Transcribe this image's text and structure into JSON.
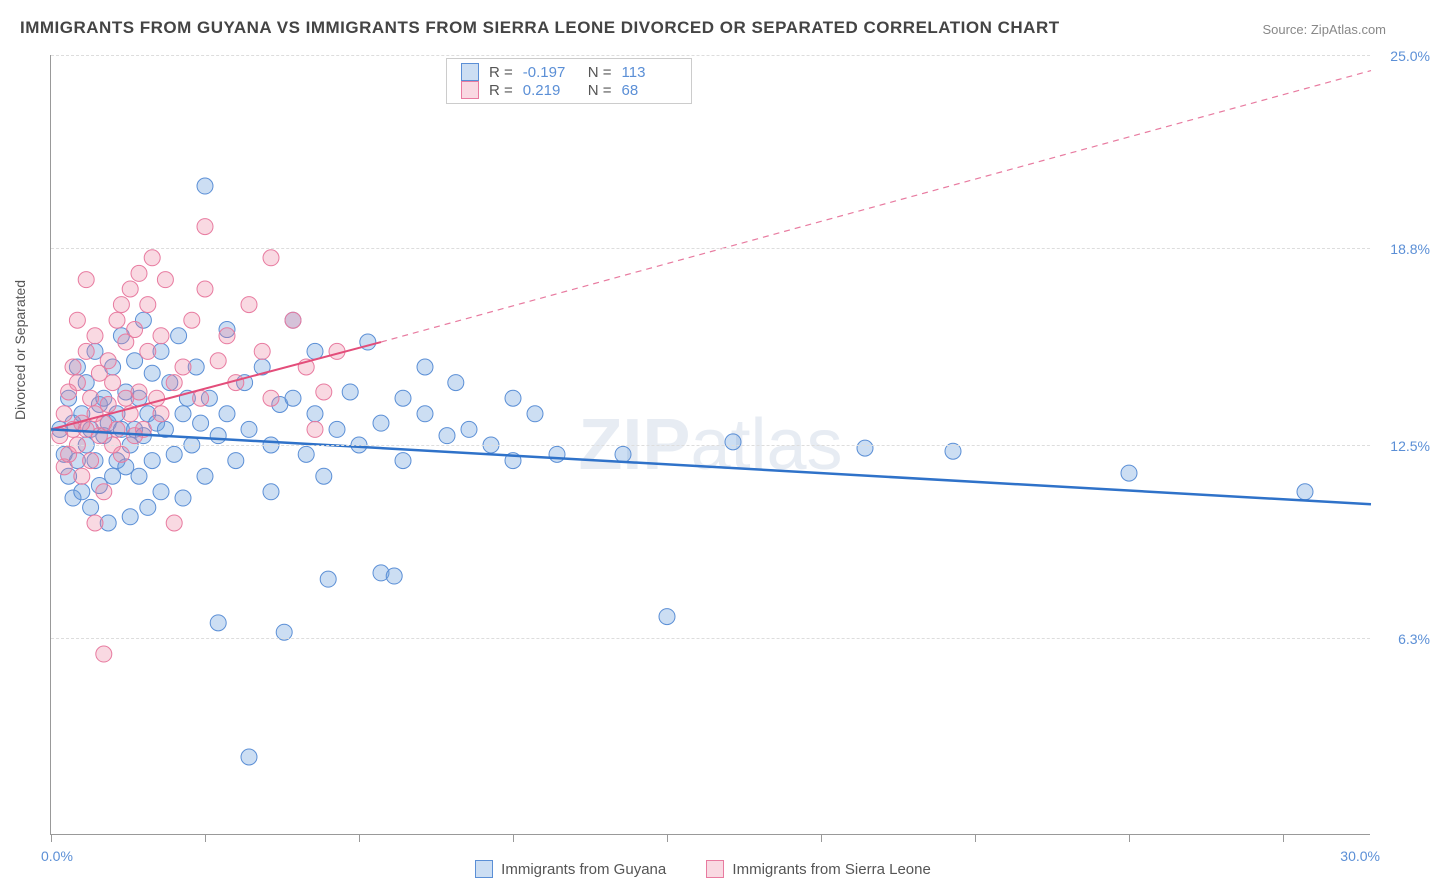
{
  "title": "IMMIGRANTS FROM GUYANA VS IMMIGRANTS FROM SIERRA LEONE DIVORCED OR SEPARATED CORRELATION CHART",
  "source": "Source: ZipAtlas.com",
  "watermark_bold": "ZIP",
  "watermark_rest": "atlas",
  "ylabel": "Divorced or Separated",
  "chart": {
    "type": "scatter",
    "xlim": [
      0,
      30
    ],
    "ylim": [
      0,
      25
    ],
    "xtick_positions": [
      0,
      3.5,
      7.0,
      10.5,
      14.0,
      17.5,
      21.0,
      24.5,
      28.0
    ],
    "x_label_min": "0.0%",
    "x_label_max": "30.0%",
    "ytick_positions": [
      6.3,
      12.5,
      18.8,
      25.0
    ],
    "ytick_labels": [
      "6.3%",
      "12.5%",
      "18.8%",
      "25.0%"
    ],
    "grid_color": "#dddddd",
    "axis_color": "#999999",
    "background": "#ffffff",
    "series": [
      {
        "name": "Immigrants from Guyana",
        "color_fill": "rgba(110,160,220,0.35)",
        "color_stroke": "#5b8fd6",
        "marker_radius": 8,
        "R": "-0.197",
        "N": "113",
        "trend": {
          "x1": 0,
          "y1": 13.0,
          "x2": 30,
          "y2": 10.6,
          "color": "#2f72c9",
          "width": 2.5,
          "dash": "none"
        },
        "points": [
          [
            0.2,
            13.0
          ],
          [
            0.3,
            12.2
          ],
          [
            0.4,
            14.0
          ],
          [
            0.4,
            11.5
          ],
          [
            0.5,
            13.2
          ],
          [
            0.5,
            10.8
          ],
          [
            0.6,
            15.0
          ],
          [
            0.6,
            12.0
          ],
          [
            0.7,
            13.5
          ],
          [
            0.7,
            11.0
          ],
          [
            0.8,
            14.5
          ],
          [
            0.8,
            12.5
          ],
          [
            0.9,
            13.0
          ],
          [
            0.9,
            10.5
          ],
          [
            1.0,
            15.5
          ],
          [
            1.0,
            12.0
          ],
          [
            1.1,
            13.8
          ],
          [
            1.1,
            11.2
          ],
          [
            1.2,
            14.0
          ],
          [
            1.2,
            12.8
          ],
          [
            1.3,
            13.2
          ],
          [
            1.3,
            10.0
          ],
          [
            1.4,
            15.0
          ],
          [
            1.4,
            11.5
          ],
          [
            1.5,
            13.5
          ],
          [
            1.5,
            12.0
          ],
          [
            1.6,
            16.0
          ],
          [
            1.6,
            13.0
          ],
          [
            1.7,
            11.8
          ],
          [
            1.7,
            14.2
          ],
          [
            1.8,
            12.5
          ],
          [
            1.8,
            10.2
          ],
          [
            1.9,
            13.0
          ],
          [
            1.9,
            15.2
          ],
          [
            2.0,
            11.5
          ],
          [
            2.0,
            14.0
          ],
          [
            2.1,
            12.8
          ],
          [
            2.1,
            16.5
          ],
          [
            2.2,
            13.5
          ],
          [
            2.2,
            10.5
          ],
          [
            2.3,
            14.8
          ],
          [
            2.3,
            12.0
          ],
          [
            2.4,
            13.2
          ],
          [
            2.5,
            15.5
          ],
          [
            2.5,
            11.0
          ],
          [
            2.6,
            13.0
          ],
          [
            2.7,
            14.5
          ],
          [
            2.8,
            12.2
          ],
          [
            2.9,
            16.0
          ],
          [
            3.0,
            13.5
          ],
          [
            3.0,
            10.8
          ],
          [
            3.1,
            14.0
          ],
          [
            3.2,
            12.5
          ],
          [
            3.3,
            15.0
          ],
          [
            3.4,
            13.2
          ],
          [
            3.5,
            11.5
          ],
          [
            3.5,
            20.8
          ],
          [
            3.6,
            14.0
          ],
          [
            3.8,
            12.8
          ],
          [
            3.8,
            6.8
          ],
          [
            4.0,
            13.5
          ],
          [
            4.0,
            16.2
          ],
          [
            4.2,
            12.0
          ],
          [
            4.4,
            14.5
          ],
          [
            4.5,
            13.0
          ],
          [
            4.5,
            2.5
          ],
          [
            4.8,
            15.0
          ],
          [
            5.0,
            12.5
          ],
          [
            5.0,
            11.0
          ],
          [
            5.2,
            13.8
          ],
          [
            5.3,
            6.5
          ],
          [
            5.5,
            14.0
          ],
          [
            5.5,
            16.5
          ],
          [
            5.8,
            12.2
          ],
          [
            6.0,
            13.5
          ],
          [
            6.0,
            15.5
          ],
          [
            6.2,
            11.5
          ],
          [
            6.3,
            8.2
          ],
          [
            6.5,
            13.0
          ],
          [
            6.8,
            14.2
          ],
          [
            7.0,
            12.5
          ],
          [
            7.2,
            15.8
          ],
          [
            7.5,
            13.2
          ],
          [
            7.5,
            8.4
          ],
          [
            7.8,
            8.3
          ],
          [
            8.0,
            14.0
          ],
          [
            8.0,
            12.0
          ],
          [
            8.5,
            13.5
          ],
          [
            8.5,
            15.0
          ],
          [
            9.0,
            12.8
          ],
          [
            9.2,
            14.5
          ],
          [
            9.5,
            13.0
          ],
          [
            10.0,
            12.5
          ],
          [
            10.5,
            14.0
          ],
          [
            10.5,
            12.0
          ],
          [
            11.0,
            13.5
          ],
          [
            11.5,
            12.2
          ],
          [
            13.0,
            12.2
          ],
          [
            14.0,
            7.0
          ],
          [
            15.5,
            12.6
          ],
          [
            18.5,
            12.4
          ],
          [
            20.5,
            12.3
          ],
          [
            24.5,
            11.6
          ],
          [
            28.5,
            11.0
          ]
        ]
      },
      {
        "name": "Immigrants from Sierra Leone",
        "color_fill": "rgba(235,130,160,0.30)",
        "color_stroke": "#e87ba0",
        "marker_radius": 8,
        "R": "0.219",
        "N": "68",
        "trend_solid": {
          "x1": 0,
          "y1": 13.0,
          "x2": 7.5,
          "y2": 15.8,
          "color": "#e34d7a",
          "width": 2,
          "dash": "none"
        },
        "trend_dash": {
          "x1": 7.5,
          "y1": 15.8,
          "x2": 30,
          "y2": 24.5,
          "color": "#e87ba0",
          "width": 1.2,
          "dash": "6,5"
        },
        "points": [
          [
            0.2,
            12.8
          ],
          [
            0.3,
            13.5
          ],
          [
            0.3,
            11.8
          ],
          [
            0.4,
            14.2
          ],
          [
            0.4,
            12.2
          ],
          [
            0.5,
            13.0
          ],
          [
            0.5,
            15.0
          ],
          [
            0.6,
            12.5
          ],
          [
            0.6,
            14.5
          ],
          [
            0.7,
            13.2
          ],
          [
            0.7,
            11.5
          ],
          [
            0.8,
            15.5
          ],
          [
            0.8,
            13.0
          ],
          [
            0.9,
            12.0
          ],
          [
            0.9,
            14.0
          ],
          [
            1.0,
            13.5
          ],
          [
            1.0,
            16.0
          ],
          [
            1.1,
            12.8
          ],
          [
            1.1,
            14.8
          ],
          [
            1.2,
            13.2
          ],
          [
            1.2,
            11.0
          ],
          [
            1.3,
            15.2
          ],
          [
            1.3,
            13.8
          ],
          [
            1.4,
            12.5
          ],
          [
            1.4,
            14.5
          ],
          [
            1.5,
            16.5
          ],
          [
            1.5,
            13.0
          ],
          [
            1.6,
            17.0
          ],
          [
            1.6,
            12.2
          ],
          [
            1.7,
            14.0
          ],
          [
            1.7,
            15.8
          ],
          [
            1.8,
            13.5
          ],
          [
            1.8,
            17.5
          ],
          [
            1.9,
            12.8
          ],
          [
            1.9,
            16.2
          ],
          [
            2.0,
            14.2
          ],
          [
            2.0,
            18.0
          ],
          [
            2.1,
            13.0
          ],
          [
            2.2,
            15.5
          ],
          [
            2.2,
            17.0
          ],
          [
            2.3,
            18.5
          ],
          [
            2.4,
            14.0
          ],
          [
            2.5,
            16.0
          ],
          [
            2.5,
            13.5
          ],
          [
            2.6,
            17.8
          ],
          [
            2.8,
            14.5
          ],
          [
            2.8,
            10.0
          ],
          [
            3.0,
            15.0
          ],
          [
            3.2,
            16.5
          ],
          [
            3.4,
            14.0
          ],
          [
            3.5,
            17.5
          ],
          [
            3.5,
            19.5
          ],
          [
            3.8,
            15.2
          ],
          [
            4.0,
            16.0
          ],
          [
            4.2,
            14.5
          ],
          [
            4.5,
            17.0
          ],
          [
            4.8,
            15.5
          ],
          [
            5.0,
            18.5
          ],
          [
            5.0,
            14.0
          ],
          [
            5.5,
            16.5
          ],
          [
            5.8,
            15.0
          ],
          [
            6.0,
            13.0
          ],
          [
            6.2,
            14.2
          ],
          [
            6.5,
            15.5
          ],
          [
            1.0,
            10.0
          ],
          [
            1.2,
            5.8
          ],
          [
            0.8,
            17.8
          ],
          [
            0.6,
            16.5
          ]
        ]
      }
    ],
    "stats_box": {
      "r_label": "R =",
      "n_label": "N ="
    },
    "legend": {
      "s1": "Immigrants from Guyana",
      "s2": "Immigrants from Sierra Leone"
    }
  }
}
